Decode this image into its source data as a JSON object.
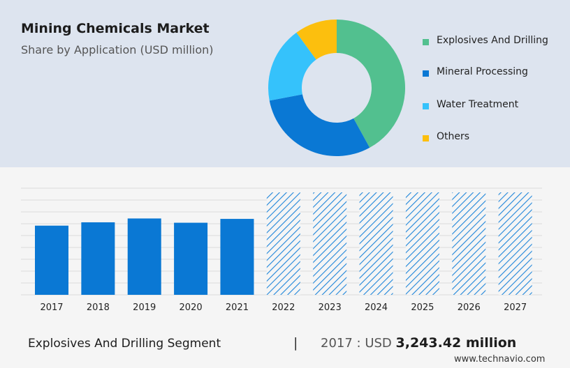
{
  "header": {
    "title": "Mining Chemicals Market",
    "subtitle": "Share by Application (USD million)"
  },
  "legend": [
    {
      "label": "Explosives And Drilling",
      "color": "#52c08f"
    },
    {
      "label": "Mineral Processing",
      "color": "#0a78d4"
    },
    {
      "label": "Water Treatment",
      "color": "#35c2fb"
    },
    {
      "label": "Others",
      "color": "#fcbf0e"
    }
  ],
  "footer": {
    "segment_label": "Explosives And Drilling Segment",
    "separator": "|",
    "value_prefix": "2017 : USD",
    "value": "3,243.42 million",
    "brand": "www.technavio.com"
  },
  "chart_data": [
    {
      "type": "pie",
      "style": "donut",
      "categories": [
        "Explosives And Drilling",
        "Mineral Processing",
        "Water Treatment",
        "Others"
      ],
      "values": [
        42,
        30,
        18,
        10
      ],
      "colors": [
        "#52c08f",
        "#0a78d4",
        "#35c2fb",
        "#fcbf0e"
      ]
    },
    {
      "type": "bar",
      "categories": [
        "2017",
        "2018",
        "2019",
        "2020",
        "2021",
        "2022",
        "2023",
        "2024",
        "2025",
        "2026",
        "2027"
      ],
      "values": [
        3243.42,
        3400,
        3580,
        3380,
        3560,
        null,
        null,
        null,
        null,
        null,
        null
      ],
      "forecast_years": [
        "2022",
        "2023",
        "2024",
        "2025",
        "2026",
        "2027"
      ],
      "ylim": [
        0,
        5000
      ],
      "grid": true,
      "bar_color": "#0a78d4",
      "forecast_pattern": "diagonal-hatch"
    }
  ]
}
